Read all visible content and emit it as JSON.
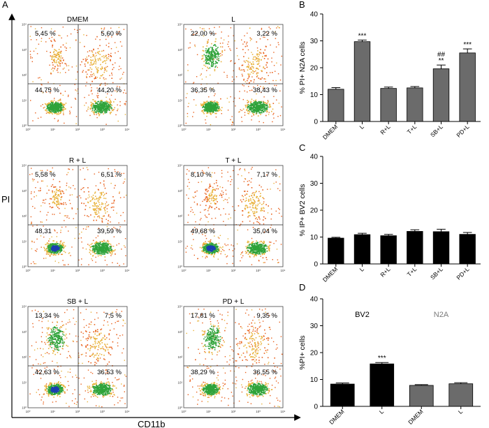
{
  "figure": {
    "panel_letters": [
      "A",
      "B",
      "C",
      "D"
    ],
    "axis_y_label": "PI",
    "axis_x_label": "CD11b"
  },
  "flow": {
    "decade_ticks": [
      "10⁰",
      "10¹",
      "10²",
      "10³",
      "10⁴"
    ],
    "plots": [
      {
        "title": "DMEM",
        "ul": "5,45 %",
        "ur": "5,60 %",
        "ll": "44,75 %",
        "lr": "44,20 %"
      },
      {
        "title": "L",
        "ul": "22,00 %",
        "ur": "3,22 %",
        "ll": "36,35 %",
        "lr": "38,43 %"
      },
      {
        "title": "R + L",
        "ul": "5,58 %",
        "ur": "6,51 %",
        "ll": "48,31",
        "lr": "39,59 %"
      },
      {
        "title": "T + L",
        "ul": "8,10 %",
        "ur": "7,17 %",
        "ll": "49,68 %",
        "lr": "35,04 %"
      },
      {
        "title": "SB + L",
        "ul": "13,34 %",
        "ur": "7,5 %",
        "ll": "42,63 %",
        "lr": "36,53 %"
      },
      {
        "title": "PD + L",
        "ul": "17,81 %",
        "ur": "9,35 %",
        "ll": "38,29 %",
        "lr": "36,55 %"
      }
    ]
  },
  "colors": {
    "bar_gray": "#6b6b6b",
    "bar_black": "#000000",
    "dot_orange": "#e8601c",
    "dot_yellow": "#e8b23a",
    "dot_green": "#2fa33a",
    "dot_blue": "#1b3fb0"
  },
  "chart_data": [
    {
      "id": "B",
      "type": "bar",
      "title": "",
      "xlabel": "",
      "ylabel": "% PI+ N2A cells",
      "ylim": [
        0,
        40
      ],
      "yticks": [
        "0",
        "10",
        "20",
        "30",
        "40"
      ],
      "categories": [
        "DMEM",
        "L",
        "R+L",
        "T+L",
        "SB+L",
        "PD+L"
      ],
      "values": [
        12,
        29.7,
        12.3,
        12.5,
        19.6,
        25.5
      ],
      "errors": [
        0.6,
        0.6,
        0.5,
        0.5,
        1.4,
        1.5
      ],
      "bar_colors": [
        "#6b6b6b",
        "#6b6b6b",
        "#6b6b6b",
        "#6b6b6b",
        "#6b6b6b",
        "#6b6b6b"
      ],
      "annotations": [
        {
          "category": "L",
          "text": "***"
        },
        {
          "category": "SB+L",
          "text": "**"
        },
        {
          "category": "SB+L",
          "text": "##"
        },
        {
          "category": "PD+L",
          "text": "***"
        }
      ]
    },
    {
      "id": "C",
      "type": "bar",
      "title": "",
      "xlabel": "",
      "ylabel": "% IP+ BV2 cells",
      "ylim": [
        0,
        40
      ],
      "yticks": [
        "0",
        "10",
        "20",
        "30",
        "40"
      ],
      "categories": [
        "DMEM",
        "L",
        "R+L",
        "T+L",
        "SB+L",
        "PD+L"
      ],
      "values": [
        9.6,
        10.9,
        10.5,
        12.1,
        12.0,
        11.0
      ],
      "errors": [
        0.3,
        0.5,
        0.5,
        0.6,
        0.9,
        0.7
      ],
      "bar_colors": [
        "#000000",
        "#000000",
        "#000000",
        "#000000",
        "#000000",
        "#000000"
      ],
      "annotations": []
    },
    {
      "id": "D",
      "type": "bar",
      "title": "",
      "xlabel": "",
      "ylabel": "%PI+ cells",
      "ylim": [
        0,
        40
      ],
      "yticks": [
        "0",
        "10",
        "20",
        "30",
        "40"
      ],
      "categories": [
        "DMEM",
        "L",
        "DMEM",
        "L"
      ],
      "values": [
        8.3,
        15.8,
        7.8,
        8.4
      ],
      "errors": [
        0.4,
        0.5,
        0.3,
        0.4
      ],
      "bar_colors": [
        "#000000",
        "#000000",
        "#6b6b6b",
        "#6b6b6b"
      ],
      "group_labels": [
        "BV2",
        "N2A"
      ],
      "group_label_colors": [
        "#000000",
        "#7a7a7a"
      ],
      "annotations": [
        {
          "category_index": 1,
          "text": "***"
        }
      ]
    }
  ]
}
